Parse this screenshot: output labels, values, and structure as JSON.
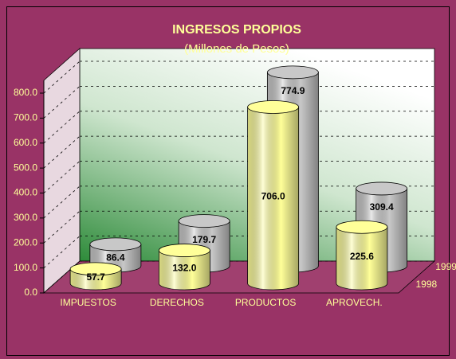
{
  "chart_data": {
    "type": "bar3d",
    "title": "INGRESOS PROPIOS",
    "subtitle": "(Millones de Pesos)",
    "categories": [
      "IMPUESTOS",
      "DERECHOS",
      "PRODUCTOS",
      "APROVECH."
    ],
    "series": [
      {
        "name": "1998",
        "color": "#ffff99",
        "values": [
          57.7,
          132,
          706,
          225.6
        ],
        "value_labels": [
          "57.7",
          "132.0",
          "706.0",
          "225.6"
        ]
      },
      {
        "name": "1999",
        "color": "#c8c8c8",
        "values": [
          86.4,
          179.7,
          774.9,
          309.4
        ],
        "value_labels": [
          "86.4",
          "179.7",
          "774.9",
          "309.4"
        ]
      }
    ],
    "ylim": [
      0,
      800
    ],
    "yticks": [
      {
        "value": 0,
        "label": "0.0"
      },
      {
        "value": 100,
        "label": "100.0"
      },
      {
        "value": 200,
        "label": "200.0"
      },
      {
        "value": 300,
        "label": "300.0"
      },
      {
        "value": 400,
        "label": "400.0"
      },
      {
        "value": 500,
        "label": "500.0"
      },
      {
        "value": 600,
        "label": "600.0"
      },
      {
        "value": 700,
        "label": "700.0"
      },
      {
        "value": 800,
        "label": "800.0"
      }
    ],
    "grid": true
  }
}
